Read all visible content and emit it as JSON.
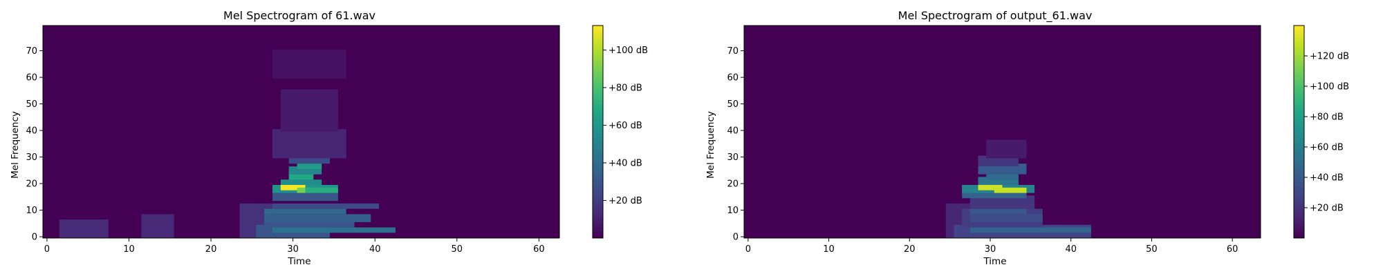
{
  "chart_data": [
    {
      "type": "heatmap",
      "title": "Mel Spectrogram of 61.wav",
      "xlabel": "Time",
      "ylabel": "Mel Frequency",
      "xlim": [
        -0.5,
        62.5
      ],
      "ylim": [
        -0.5,
        79.5
      ],
      "xticks": [
        0,
        10,
        20,
        30,
        40,
        50,
        60
      ],
      "yticks": [
        0,
        10,
        20,
        30,
        40,
        50,
        60,
        70
      ],
      "colormap": "viridis",
      "colorbar": {
        "range": [
          0,
          113
        ],
        "ticks": [
          20,
          40,
          60,
          80,
          100
        ],
        "tick_labels": [
          "+20 dB",
          "+40 dB",
          "+60 dB",
          "+80 dB",
          "+100 dB"
        ]
      },
      "regions": [
        {
          "t": [
            2,
            7
          ],
          "f": [
            0,
            6
          ],
          "db": 14
        },
        {
          "t": [
            12,
            15
          ],
          "f": [
            0,
            8
          ],
          "db": 13
        },
        {
          "t": [
            24,
            27
          ],
          "f": [
            0,
            12
          ],
          "db": 16
        },
        {
          "t": [
            26,
            34
          ],
          "f": [
            0,
            4
          ],
          "db": 30
        },
        {
          "t": [
            28,
            42
          ],
          "f": [
            2,
            3
          ],
          "db": 42
        },
        {
          "t": [
            27,
            37
          ],
          "f": [
            4,
            5
          ],
          "db": 30
        },
        {
          "t": [
            27,
            39
          ],
          "f": [
            6,
            8
          ],
          "db": 34
        },
        {
          "t": [
            27,
            36
          ],
          "f": [
            9,
            10
          ],
          "db": 38
        },
        {
          "t": [
            28,
            40
          ],
          "f": [
            11,
            12
          ],
          "db": 26
        },
        {
          "t": [
            28,
            35
          ],
          "f": [
            14,
            16
          ],
          "db": 30
        },
        {
          "t": [
            28,
            35
          ],
          "f": [
            17,
            19
          ],
          "db": 58
        },
        {
          "t": [
            29,
            31
          ],
          "f": [
            18,
            19
          ],
          "db": 112
        },
        {
          "t": [
            31,
            32
          ],
          "f": [
            17,
            18
          ],
          "db": 90
        },
        {
          "t": [
            32,
            35
          ],
          "f": [
            17,
            18
          ],
          "db": 70
        },
        {
          "t": [
            29,
            33
          ],
          "f": [
            20,
            21
          ],
          "db": 55
        },
        {
          "t": [
            30,
            32
          ],
          "f": [
            22,
            24
          ],
          "db": 68
        },
        {
          "t": [
            30,
            33
          ],
          "f": [
            24,
            26
          ],
          "db": 52
        },
        {
          "t": [
            31,
            33
          ],
          "f": [
            26,
            28
          ],
          "db": 62
        },
        {
          "t": [
            30,
            34
          ],
          "f": [
            28,
            32
          ],
          "db": 26
        },
        {
          "t": [
            28,
            36
          ],
          "f": [
            30,
            40
          ],
          "db": 12
        },
        {
          "t": [
            29,
            35
          ],
          "f": [
            40,
            55
          ],
          "db": 8
        },
        {
          "t": [
            28,
            36
          ],
          "f": [
            60,
            70
          ],
          "db": 5
        }
      ]
    },
    {
      "type": "heatmap",
      "title": "Mel Spectrogram of output_61.wav",
      "xlabel": "Time",
      "ylabel": "Mel Frequency",
      "xlim": [
        -0.5,
        63.5
      ],
      "ylim": [
        -0.5,
        79.5
      ],
      "xticks": [
        0,
        10,
        20,
        30,
        40,
        50,
        60
      ],
      "yticks": [
        0,
        10,
        20,
        30,
        40,
        50,
        60,
        70
      ],
      "colormap": "viridis",
      "colorbar": {
        "range": [
          0,
          140
        ],
        "ticks": [
          20,
          40,
          60,
          80,
          100,
          120
        ],
        "tick_labels": [
          "+20 dB",
          "+40 dB",
          "+60 dB",
          "+80 dB",
          "+100 dB",
          "+120 dB"
        ]
      },
      "regions": [
        {
          "t": [
            25,
            28
          ],
          "f": [
            0,
            12
          ],
          "db": 15
        },
        {
          "t": [
            26,
            42
          ],
          "f": [
            0,
            4
          ],
          "db": 28
        },
        {
          "t": [
            28,
            42
          ],
          "f": [
            2,
            3
          ],
          "db": 45
        },
        {
          "t": [
            27,
            36
          ],
          "f": [
            4,
            10
          ],
          "db": 25
        },
        {
          "t": [
            28,
            36
          ],
          "f": [
            6,
            8
          ],
          "db": 32
        },
        {
          "t": [
            28,
            34
          ],
          "f": [
            9,
            10
          ],
          "db": 38
        },
        {
          "t": [
            28,
            35
          ],
          "f": [
            11,
            15
          ],
          "db": 22
        },
        {
          "t": [
            27,
            34
          ],
          "f": [
            15,
            17
          ],
          "db": 44
        },
        {
          "t": [
            27,
            35
          ],
          "f": [
            17,
            19
          ],
          "db": 62
        },
        {
          "t": [
            29,
            31
          ],
          "f": [
            18,
            19
          ],
          "db": 130
        },
        {
          "t": [
            31,
            34
          ],
          "f": [
            17,
            18
          ],
          "db": 128
        },
        {
          "t": [
            29,
            33
          ],
          "f": [
            20,
            22
          ],
          "db": 55
        },
        {
          "t": [
            30,
            33
          ],
          "f": [
            22,
            24
          ],
          "db": 48
        },
        {
          "t": [
            29,
            34
          ],
          "f": [
            24,
            27
          ],
          "db": 40
        },
        {
          "t": [
            29,
            33
          ],
          "f": [
            27,
            30
          ],
          "db": 22
        },
        {
          "t": [
            30,
            34
          ],
          "f": [
            30,
            36
          ],
          "db": 10
        }
      ]
    }
  ]
}
